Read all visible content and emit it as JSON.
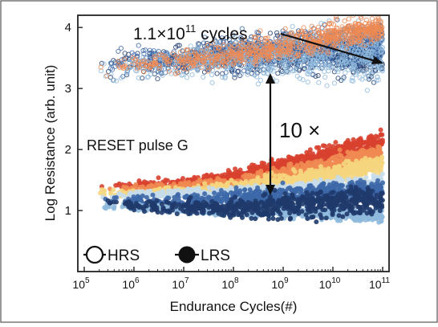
{
  "chart_data": {
    "type": "scatter",
    "title": "",
    "xlabel": "Endurance Cycles(#)",
    "ylabel": "Log Resistance (arb. unit)",
    "x_scale": "log",
    "xlim": [
      100000,
      100000000000
    ],
    "ylim": [
      0,
      4.2
    ],
    "x_ticks": [
      {
        "value": 100000,
        "base": "10",
        "exp": "5"
      },
      {
        "value": 1000000,
        "base": "10",
        "exp": "6"
      },
      {
        "value": 10000000,
        "base": "10",
        "exp": "7"
      },
      {
        "value": 100000000,
        "base": "10",
        "exp": "8"
      },
      {
        "value": 1000000000,
        "base": "10",
        "exp": "9"
      },
      {
        "value": 10000000000,
        "base": "10",
        "exp": "10"
      },
      {
        "value": 100000000000,
        "base": "10",
        "exp": "11"
      }
    ],
    "y_ticks": [
      1,
      2,
      3,
      4
    ],
    "grid": false,
    "legend": {
      "placement": "bottom-left",
      "entries": [
        {
          "label": "HRS",
          "marker": "open-circle"
        },
        {
          "label": "LRS",
          "marker": "filled-circle"
        }
      ]
    },
    "annotations": {
      "cycles_mantissa": "1.1×10",
      "cycles_exponent": "11",
      "cycles_unit": " cycles",
      "ratio": "10 ×",
      "pulse": "RESET pulse G"
    },
    "colors": {
      "dark_navy": "#1f3a6b",
      "mid_blue": "#3d68a8",
      "light_blue": "#8fb9dc",
      "pale_blue": "#c6dceb",
      "yellow": "#f5d67e",
      "orange": "#ef8a52",
      "red": "#d8412f"
    },
    "series": [
      {
        "kind": "HRS",
        "color": "#1f3a6b",
        "x": [
          200000,
          1000000,
          10000000,
          100000000,
          1000000000,
          10000000000,
          100000000000
        ],
        "y": [
          3.35,
          3.4,
          3.45,
          3.5,
          3.55,
          3.58,
          3.6
        ],
        "spread": [
          0.22,
          0.22,
          0.25,
          0.28,
          0.3,
          0.35,
          0.4
        ]
      },
      {
        "kind": "HRS",
        "color": "#3d68a8",
        "x": [
          200000,
          1000000,
          10000000,
          100000000,
          1000000000,
          10000000000,
          100000000000
        ],
        "y": [
          3.4,
          3.45,
          3.5,
          3.6,
          3.65,
          3.7,
          3.75
        ],
        "spread": [
          0.2,
          0.2,
          0.22,
          0.25,
          0.28,
          0.3,
          0.35
        ]
      },
      {
        "kind": "HRS",
        "color": "#8fb9dc",
        "x": [
          200000,
          1000000,
          10000000,
          100000000,
          1000000000,
          10000000000,
          100000000000
        ],
        "y": [
          3.3,
          3.35,
          3.4,
          3.5,
          3.5,
          3.55,
          3.55
        ],
        "spread": [
          0.2,
          0.22,
          0.25,
          0.3,
          0.35,
          0.4,
          0.5
        ]
      },
      {
        "kind": "HRS",
        "color": "#ef8a52",
        "x": [
          200000,
          1000000,
          10000000,
          100000000,
          1000000000,
          10000000000,
          100000000000
        ],
        "y": [
          3.35,
          3.4,
          3.45,
          3.55,
          3.7,
          3.85,
          4.0
        ],
        "spread": [
          0.15,
          0.15,
          0.18,
          0.2,
          0.22,
          0.22,
          0.2
        ]
      },
      {
        "kind": "LRS",
        "color": "#d8412f",
        "x": [
          200000,
          1000000,
          10000000,
          100000000,
          1000000000,
          10000000000,
          100000000000
        ],
        "y": [
          1.42,
          1.42,
          1.45,
          1.55,
          1.75,
          1.95,
          2.15
        ],
        "spread": [
          0.05,
          0.06,
          0.08,
          0.1,
          0.12,
          0.14,
          0.16
        ]
      },
      {
        "kind": "LRS",
        "color": "#ef8a52",
        "x": [
          200000,
          1000000,
          10000000,
          100000000,
          1000000000,
          10000000000,
          100000000000
        ],
        "y": [
          1.35,
          1.35,
          1.38,
          1.45,
          1.6,
          1.75,
          1.95
        ],
        "spread": [
          0.05,
          0.06,
          0.08,
          0.1,
          0.12,
          0.14,
          0.16
        ]
      },
      {
        "kind": "LRS",
        "color": "#f5d67e",
        "x": [
          200000,
          1000000,
          10000000,
          100000000,
          1000000000,
          10000000000,
          100000000000
        ],
        "y": [
          1.3,
          1.3,
          1.32,
          1.38,
          1.48,
          1.6,
          1.75
        ],
        "spread": [
          0.05,
          0.06,
          0.08,
          0.1,
          0.12,
          0.14,
          0.16
        ]
      },
      {
        "kind": "LRS",
        "color": "#c6dceb",
        "x": [
          200000,
          1000000,
          10000000,
          100000000,
          1000000000,
          10000000000,
          100000000000
        ],
        "y": [
          1.25,
          1.25,
          1.28,
          1.3,
          1.35,
          1.4,
          1.45
        ],
        "spread": [
          0.05,
          0.06,
          0.07,
          0.08,
          0.1,
          0.12,
          0.14
        ]
      },
      {
        "kind": "LRS",
        "color": "#3d68a8",
        "x": [
          200000,
          1000000,
          10000000,
          100000000,
          1000000000,
          10000000000,
          100000000000
        ],
        "y": [
          1.18,
          1.15,
          1.15,
          1.2,
          1.25,
          1.3,
          1.35
        ],
        "spread": [
          0.05,
          0.08,
          0.12,
          0.15,
          0.15,
          0.15,
          0.15
        ]
      },
      {
        "kind": "LRS",
        "color": "#8fb9dc",
        "x": [
          200000,
          1000000,
          10000000,
          100000000,
          1000000000,
          10000000000,
          100000000000
        ],
        "y": [
          1.08,
          1.05,
          1.02,
          1.0,
          0.98,
          0.95,
          0.92
        ],
        "spread": [
          0.05,
          0.06,
          0.08,
          0.08,
          0.08,
          0.1,
          0.1
        ]
      },
      {
        "kind": "LRS",
        "color": "#1f3a6b",
        "x": [
          200000,
          1000000,
          10000000,
          100000000,
          1000000000,
          10000000000,
          100000000000
        ],
        "y": [
          1.12,
          1.08,
          1.05,
          1.05,
          1.08,
          1.12,
          1.15
        ],
        "spread": [
          0.05,
          0.08,
          0.12,
          0.15,
          0.2,
          0.22,
          0.22
        ]
      }
    ]
  }
}
